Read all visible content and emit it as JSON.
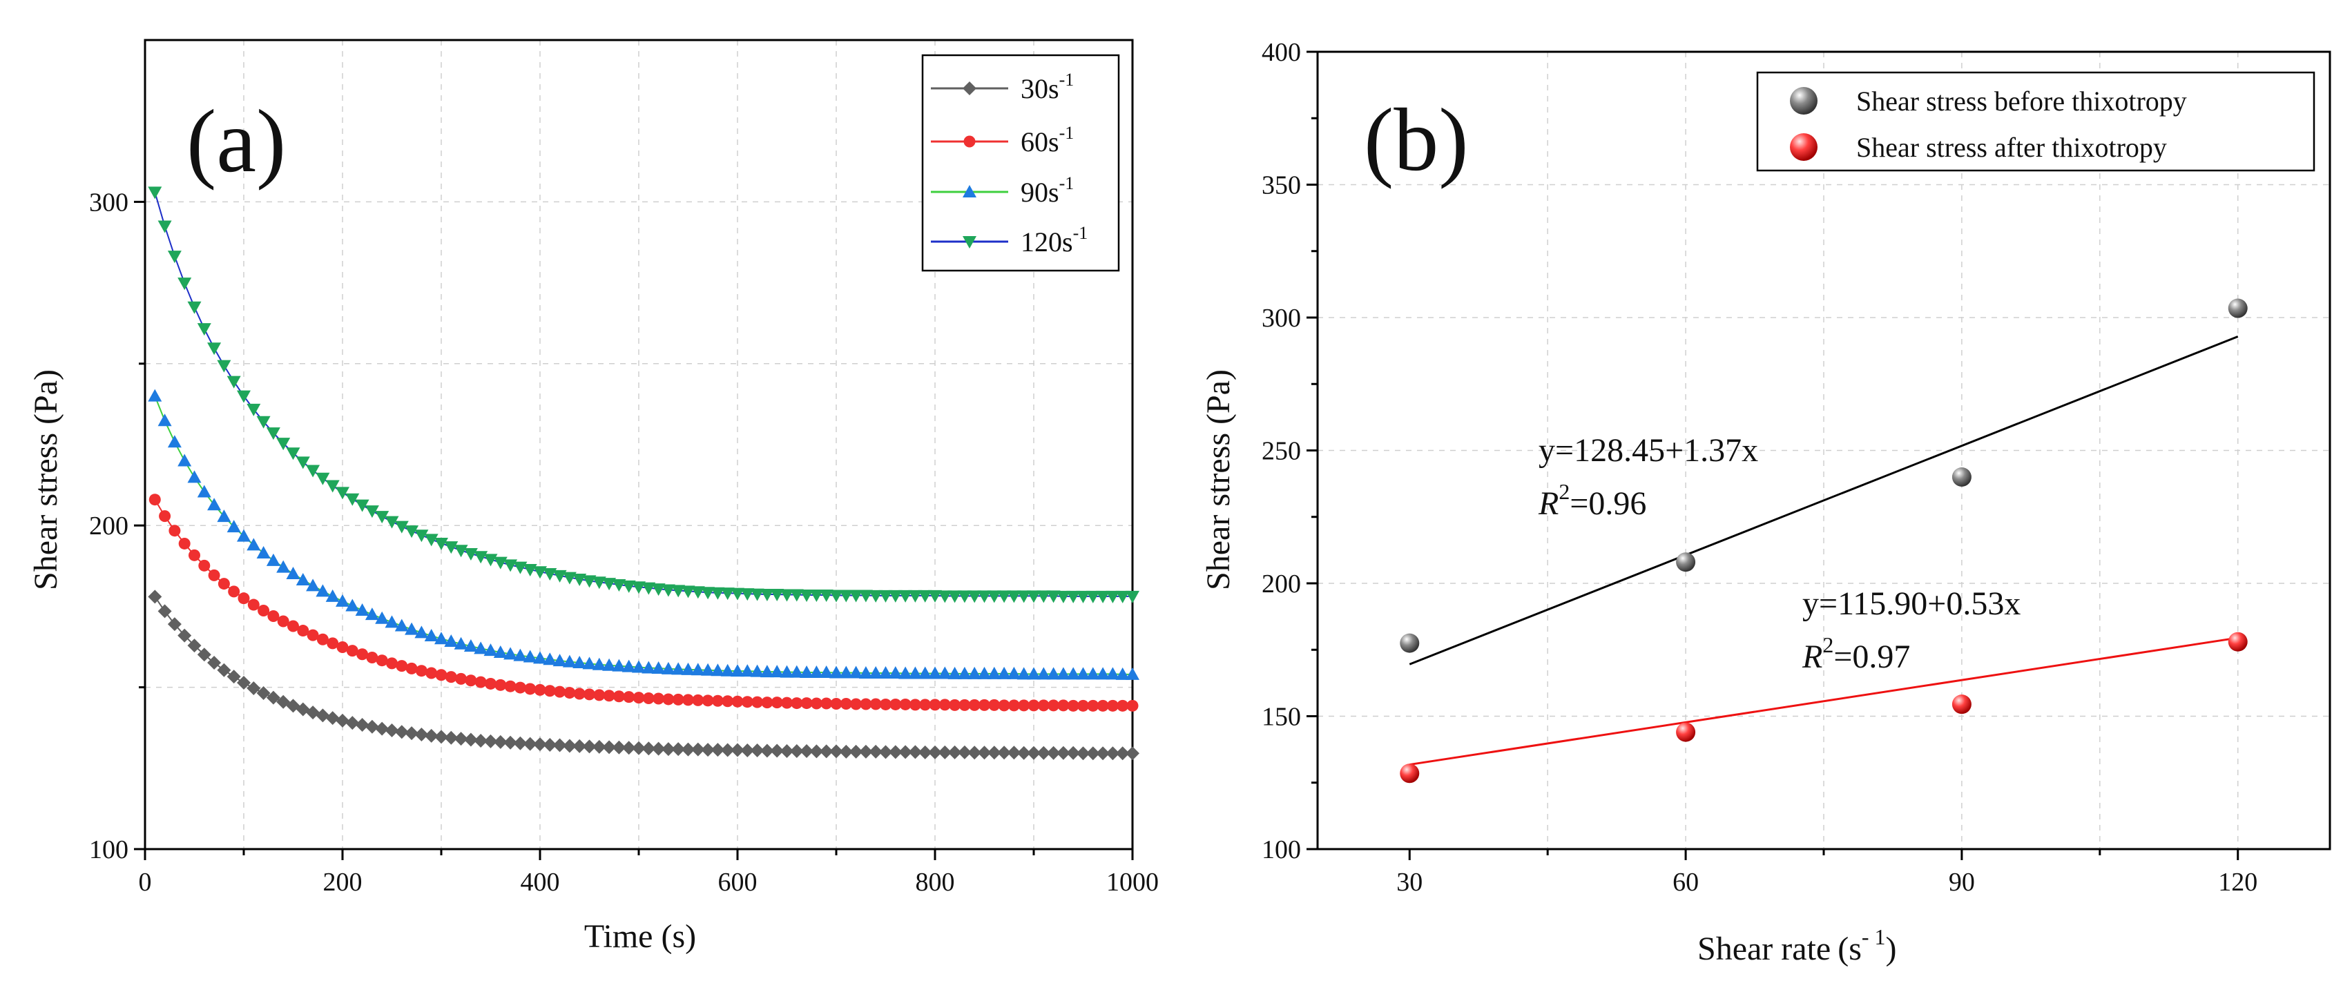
{
  "chart_data": [
    {
      "panel": "(a)",
      "type": "scatter",
      "xlabel": "Time (s)",
      "ylabel": "Shear stress (Pa)",
      "xlim": [
        0,
        1000
      ],
      "ylim": [
        100,
        350
      ],
      "xticks": [
        0,
        200,
        400,
        600,
        800,
        1000
      ],
      "yticks": [
        100,
        200,
        300
      ],
      "grid": true,
      "legend_position": "top-right",
      "series": [
        {
          "name": "30s",
          "name_sup": "-1",
          "color": "#606060",
          "marker": "diamond",
          "x": [
            10,
            20,
            30,
            40,
            50,
            60,
            70,
            80,
            90,
            100,
            110,
            120,
            130,
            140,
            150,
            160,
            170,
            180,
            190,
            200,
            210,
            220,
            230,
            240,
            250,
            260,
            270,
            280,
            290,
            300,
            310,
            320,
            330,
            340,
            350,
            360,
            370,
            380,
            390,
            400,
            410,
            420,
            430,
            440,
            450,
            460,
            470,
            480,
            490,
            500,
            510,
            520,
            530,
            540,
            550,
            560,
            570,
            580,
            590,
            600,
            610,
            620,
            630,
            640,
            650,
            660,
            670,
            680,
            690,
            700,
            710,
            720,
            730,
            740,
            750,
            760,
            770,
            780,
            790,
            800,
            810,
            820,
            830,
            840,
            850,
            860,
            870,
            880,
            890,
            900,
            910,
            920,
            930,
            940,
            950,
            960,
            970,
            980,
            990,
            1000
          ],
          "y": [
            178,
            173.5,
            169.5,
            166,
            162.9,
            160.1,
            157.6,
            155.3,
            153.3,
            151.4,
            149.7,
            148.2,
            146.8,
            145.5,
            144.3,
            143.2,
            142.2,
            141.3,
            140.5,
            139.7,
            139,
            138.4,
            137.8,
            137.2,
            136.7,
            136.2,
            135.8,
            135.4,
            135,
            134.7,
            134.4,
            134.1,
            133.8,
            133.5,
            133.3,
            133.1,
            132.9,
            132.7,
            132.5,
            132.4,
            132.2,
            132.1,
            131.9,
            131.8,
            131.7,
            131.6,
            131.5,
            131.4,
            131.3,
            131.2,
            131.1,
            131,
            130.9,
            130.9,
            130.8,
            130.8,
            130.7,
            130.7,
            130.6,
            130.6,
            130.5,
            130.5,
            130.4,
            130.4,
            130.3,
            130.3,
            130.3,
            130.2,
            130.2,
            130.2,
            130.1,
            130.1,
            130.1,
            130.1,
            130,
            130,
            130,
            130,
            129.9,
            129.9,
            129.9,
            129.9,
            129.9,
            129.8,
            129.8,
            129.8,
            129.8,
            129.8,
            129.7,
            129.7,
            129.7,
            129.7,
            129.7,
            129.7,
            129.6,
            129.6,
            129.6,
            129.6,
            129.6,
            129.6
          ]
        },
        {
          "name": "60s",
          "name_sup": "-1",
          "color": "#ef3030",
          "marker": "circle",
          "x": [
            10,
            20,
            30,
            40,
            50,
            60,
            70,
            80,
            90,
            100,
            110,
            120,
            130,
            140,
            150,
            160,
            170,
            180,
            190,
            200,
            210,
            220,
            230,
            240,
            250,
            260,
            270,
            280,
            290,
            300,
            310,
            320,
            330,
            340,
            350,
            360,
            370,
            380,
            390,
            400,
            410,
            420,
            430,
            440,
            450,
            460,
            470,
            480,
            490,
            500,
            510,
            520,
            530,
            540,
            550,
            560,
            570,
            580,
            590,
            600,
            610,
            620,
            630,
            640,
            650,
            660,
            670,
            680,
            690,
            700,
            710,
            720,
            730,
            740,
            750,
            760,
            770,
            780,
            790,
            800,
            810,
            820,
            830,
            840,
            850,
            860,
            870,
            880,
            890,
            900,
            910,
            920,
            930,
            940,
            950,
            960,
            970,
            980,
            990,
            1000
          ],
          "y": [
            208,
            202.9,
            198.4,
            194.4,
            190.8,
            187.6,
            184.6,
            182,
            179.6,
            177.5,
            175.5,
            173.7,
            172,
            170.4,
            168.9,
            167.5,
            166.1,
            164.8,
            163.6,
            162.4,
            161.3,
            160.2,
            159.2,
            158.3,
            157.4,
            156.6,
            155.8,
            155.1,
            154.4,
            153.8,
            153.2,
            152.6,
            152.1,
            151.6,
            151.1,
            150.7,
            150.3,
            149.9,
            149.5,
            149.2,
            148.9,
            148.6,
            148.3,
            148,
            147.8,
            147.6,
            147.4,
            147.2,
            147,
            146.8,
            146.6,
            146.5,
            146.3,
            146.2,
            146.1,
            146,
            145.9,
            145.8,
            145.7,
            145.6,
            145.5,
            145.4,
            145.3,
            145.3,
            145.2,
            145.1,
            145.1,
            145,
            145,
            144.9,
            144.9,
            144.8,
            144.8,
            144.8,
            144.7,
            144.7,
            144.7,
            144.6,
            144.6,
            144.6,
            144.6,
            144.5,
            144.5,
            144.5,
            144.5,
            144.5,
            144.4,
            144.4,
            144.4,
            144.4,
            144.4,
            144.4,
            144.4,
            144.3,
            144.3,
            144.3,
            144.3,
            144.3,
            144.3,
            144.3
          ]
        },
        {
          "name": "90s",
          "name_sup": "-1",
          "color": "#1e7be0",
          "line_color": "#3ecf3e",
          "marker": "triangle-up",
          "x": [
            10,
            20,
            30,
            40,
            50,
            60,
            70,
            80,
            90,
            100,
            110,
            120,
            130,
            140,
            150,
            160,
            170,
            180,
            190,
            200,
            210,
            220,
            230,
            240,
            250,
            260,
            270,
            280,
            290,
            300,
            310,
            320,
            330,
            340,
            350,
            360,
            370,
            380,
            390,
            400,
            410,
            420,
            430,
            440,
            450,
            460,
            470,
            480,
            490,
            500,
            510,
            520,
            530,
            540,
            550,
            560,
            570,
            580,
            590,
            600,
            610,
            620,
            630,
            640,
            650,
            660,
            670,
            680,
            690,
            700,
            710,
            720,
            730,
            740,
            750,
            760,
            770,
            780,
            790,
            800,
            810,
            820,
            830,
            840,
            850,
            860,
            870,
            880,
            890,
            900,
            910,
            920,
            930,
            940,
            950,
            960,
            970,
            980,
            990,
            1000
          ],
          "y": [
            240,
            232.4,
            225.8,
            220,
            214.9,
            210.4,
            206.4,
            202.8,
            199.6,
            196.7,
            194,
            191.5,
            189.2,
            187.1,
            185.1,
            183.2,
            181.4,
            179.7,
            178.1,
            176.6,
            175.2,
            173.8,
            172.5,
            171.3,
            170.1,
            169,
            167.9,
            166.9,
            165.9,
            165,
            164.2,
            163.4,
            162.7,
            162,
            161.4,
            160.8,
            160.3,
            159.8,
            159.4,
            159,
            158.6,
            158.2,
            157.9,
            157.6,
            157.3,
            157,
            156.8,
            156.6,
            156.4,
            156.2,
            156,
            155.9,
            155.7,
            155.6,
            155.5,
            155.4,
            155.3,
            155.2,
            155.1,
            155,
            155,
            154.9,
            154.8,
            154.8,
            154.7,
            154.7,
            154.6,
            154.6,
            154.6,
            154.5,
            154.5,
            154.5,
            154.4,
            154.4,
            154.4,
            154.4,
            154.3,
            154.3,
            154.3,
            154.3,
            154.3,
            154.2,
            154.2,
            154.2,
            154.2,
            154.2,
            154.2,
            154.2,
            154.1,
            154.1,
            154.1,
            154.1,
            154.1,
            154.1,
            154.1,
            154.1,
            154.1,
            154.1,
            154,
            154
          ]
        },
        {
          "name": "120s",
          "name_sup": "-1",
          "color": "#1fa65a",
          "line_color": "#1d2fc8",
          "marker": "triangle-down",
          "x": [
            10,
            20,
            30,
            40,
            50,
            60,
            70,
            80,
            90,
            100,
            110,
            120,
            130,
            140,
            150,
            160,
            170,
            180,
            190,
            200,
            210,
            220,
            230,
            240,
            250,
            260,
            270,
            280,
            290,
            300,
            310,
            320,
            330,
            340,
            350,
            360,
            370,
            380,
            390,
            400,
            410,
            420,
            430,
            440,
            450,
            460,
            470,
            480,
            490,
            500,
            510,
            520,
            530,
            540,
            550,
            560,
            570,
            580,
            590,
            600,
            610,
            620,
            630,
            640,
            650,
            660,
            670,
            680,
            690,
            700,
            710,
            720,
            730,
            740,
            750,
            760,
            770,
            780,
            790,
            800,
            810,
            820,
            830,
            840,
            850,
            860,
            870,
            880,
            890,
            900,
            910,
            920,
            930,
            940,
            950,
            960,
            970,
            980,
            990,
            1000
          ],
          "y": [
            303,
            292.5,
            283.2,
            274.9,
            267.5,
            260.8,
            254.8,
            249.4,
            244.5,
            240,
            235.9,
            232.1,
            228.6,
            225.4,
            222.4,
            219.6,
            217,
            214.6,
            212.3,
            210.2,
            208.2,
            206.3,
            204.5,
            202.8,
            201.2,
            199.7,
            198.3,
            197,
            195.7,
            194.5,
            193.4,
            192.3,
            191.3,
            190.4,
            189.5,
            188.6,
            187.8,
            187.1,
            186.4,
            185.7,
            185.1,
            184.5,
            183.9,
            183.4,
            182.9,
            182.5,
            182.1,
            181.7,
            181.3,
            181,
            180.7,
            180.4,
            180.1,
            179.9,
            179.7,
            179.5,
            179.3,
            179.2,
            179.1,
            179,
            178.9,
            178.8,
            178.7,
            178.7,
            178.6,
            178.6,
            178.5,
            178.5,
            178.5,
            178.4,
            178.4,
            178.4,
            178.4,
            178.3,
            178.3,
            178.3,
            178.3,
            178.3,
            178.3,
            178.3,
            178.2,
            178.2,
            178.2,
            178.2,
            178.2,
            178.2,
            178.2,
            178.2,
            178.2,
            178.2,
            178.2,
            178.2,
            178.1,
            178.1,
            178.1,
            178.1,
            178.1,
            178.1,
            178.1,
            178.1
          ]
        }
      ]
    },
    {
      "panel": "(b)",
      "type": "scatter",
      "xlabel": "Shear rate",
      "xlabel_unit_base": "(s",
      "xlabel_unit_sup": "- 1",
      "xlabel_unit_close": ")",
      "ylabel": "Shear stress (Pa)",
      "xlim": [
        20,
        130
      ],
      "ylim": [
        100,
        400
      ],
      "xticks": [
        30,
        60,
        90,
        120
      ],
      "yticks": [
        100,
        150,
        200,
        250,
        300,
        350,
        400
      ],
      "grid": true,
      "legend_position": "top-right",
      "series": [
        {
          "name": "Shear stress before thixotropy",
          "color": "#666666",
          "marker": "sphere",
          "x": [
            30,
            60,
            90,
            120
          ],
          "y": [
            177.5,
            208,
            240,
            303.5
          ],
          "fit": {
            "line": [
              [
                30,
                169.55
              ],
              [
                120,
                292.85
              ]
            ],
            "color": "#000000",
            "equation": "y=128.45+1.37x",
            "r2_label": "R",
            "r2_sup": "2",
            "r2_value": "=0.96"
          }
        },
        {
          "name": "Shear stress after thixotropy",
          "color": "#ee2020",
          "marker": "sphere",
          "x": [
            30,
            60,
            90,
            120
          ],
          "y": [
            128.5,
            144,
            154.5,
            178
          ],
          "fit": {
            "line": [
              [
                30,
                131.8
              ],
              [
                120,
                179.5
              ]
            ],
            "color": "#ee1111",
            "equation": "y=115.90+0.53x",
            "r2_label": "R",
            "r2_sup": "2",
            "r2_value": "=0.97"
          }
        }
      ]
    }
  ]
}
